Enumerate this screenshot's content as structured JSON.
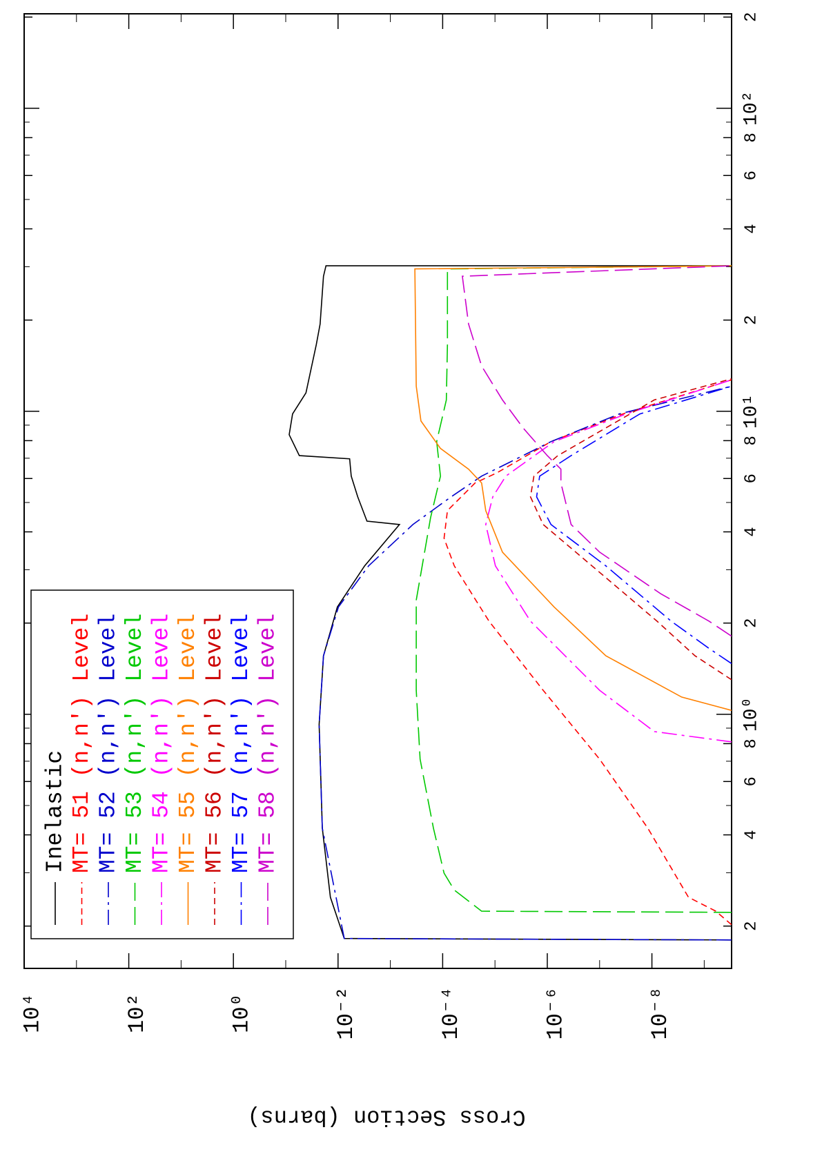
{
  "chart_data": {
    "type": "line",
    "ylabel": "Cross Section (barns)",
    "xscale": "log",
    "yscale": "log",
    "xlim": [
      0.145,
      205
    ],
    "ylim": [
      3e-10,
      10000
    ],
    "xticks": [
      {
        "value": 0.2,
        "label": "2"
      },
      {
        "value": 0.4,
        "label": "4"
      },
      {
        "value": 0.6,
        "label": "6"
      },
      {
        "value": 0.8,
        "label": "8"
      },
      {
        "value": 1,
        "label": "10⁰"
      },
      {
        "value": 2,
        "label": "2"
      },
      {
        "value": 4,
        "label": "4"
      },
      {
        "value": 6,
        "label": "6"
      },
      {
        "value": 8,
        "label": "8"
      },
      {
        "value": 10,
        "label": "10¹"
      },
      {
        "value": 20,
        "label": "2"
      },
      {
        "value": 40,
        "label": "4"
      },
      {
        "value": 60,
        "label": "6"
      },
      {
        "value": 80,
        "label": "8"
      },
      {
        "value": 100,
        "label": "10²"
      },
      {
        "value": 200,
        "label": "2"
      }
    ],
    "xminorticks": [
      0.3,
      0.5,
      0.7,
      0.9,
      3,
      5,
      7,
      9,
      30,
      50,
      70,
      90
    ],
    "yticks": [
      {
        "value": 10000,
        "label": "10⁴"
      },
      {
        "value": 100,
        "label": "10²"
      },
      {
        "value": 1,
        "label": "10⁰"
      },
      {
        "value": 0.01,
        "label": "10⁻²"
      },
      {
        "value": 0.0001,
        "label": "10⁻⁴"
      },
      {
        "value": 1e-06,
        "label": "10⁻⁶"
      },
      {
        "value": 1e-08,
        "label": "10⁻⁸"
      }
    ],
    "yminorticks": [
      1000,
      10,
      0.1,
      0.001,
      1e-05,
      1e-07,
      1e-09
    ],
    "legend": "upper-left",
    "series": [
      {
        "name": "Inelastic",
        "color": "#000000",
        "dash": "solid",
        "x": [
          0.18,
          0.182,
          0.249,
          0.421,
          0.925,
          1.56,
          2.26,
          3.09,
          4.23,
          4.34,
          5.22,
          6.11,
          6.97,
          7.14,
          8.37,
          9.8,
          11.5,
          16.6,
          19.4,
          27.9,
          30.2,
          30.2
        ],
        "values": [
          3e-10,
          0.0076,
          0.014,
          0.02,
          0.023,
          0.019,
          0.0103,
          0.0031,
          0.00067,
          0.0028,
          0.0042,
          0.0056,
          0.006,
          0.055,
          0.086,
          0.074,
          0.041,
          0.026,
          0.022,
          0.019,
          0.017,
          3e-10
        ]
      },
      {
        "name": "MT= 51 (n,n') Level",
        "color": "#ff0000",
        "dash": "dash",
        "x": [
          0.202,
          0.224,
          0.249,
          0.421,
          0.711,
          1.2,
          2.03,
          3.09,
          3.81,
          4.7,
          5.8,
          6.27,
          7.94,
          9.8,
          12.7
        ],
        "values": [
          3e-10,
          6e-10,
          2e-09,
          1.2e-08,
          1e-07,
          1.2e-06,
          1.3e-05,
          6e-05,
          9.4e-05,
          8.1e-05,
          2.4e-05,
          9.1e-06,
          8.5e-07,
          3.6e-08,
          3e-10
        ]
      },
      {
        "name": "MT= 52 (n,n') Level",
        "color": "#0000cc",
        "dash": "dashdot",
        "x": [
          0.18,
          0.182,
          0.421,
          0.925,
          1.56,
          2.26,
          3.09,
          4.23,
          5.22,
          6.11,
          6.78,
          7.94,
          9.8,
          12.1
        ],
        "values": [
          3e-10,
          0.0076,
          0.02,
          0.023,
          0.019,
          0.0098,
          0.0026,
          0.00037,
          6.9e-05,
          1.8e-05,
          5.3e-06,
          8.5e-07,
          4.2e-08,
          3e-10
        ]
      },
      {
        "name": "MT= 53 (n,n') Level",
        "color": "#00c800",
        "dash": "longdash",
        "x": [
          0.222,
          0.224,
          0.263,
          0.299,
          0.421,
          0.711,
          1.2,
          2.38,
          4.46,
          6.11,
          7.94,
          10.9,
          16.6,
          29.5,
          30.2
        ],
        "values": [
          3e-10,
          1.8e-05,
          6e-05,
          9.4e-05,
          0.00015,
          0.00027,
          0.00032,
          0.00032,
          0.00017,
          0.00011,
          0.00013,
          8.5e-05,
          8.1e-05,
          8.1e-05,
          3e-10
        ]
      },
      {
        "name": "MT= 54 (n,n') Level",
        "color": "#ff00ff",
        "dash": "dashdot",
        "x": [
          0.811,
          0.877,
          1.2,
          2.03,
          3.09,
          4.23,
          5.22,
          6.11,
          7.94,
          9.8,
          12.7
        ],
        "values": [
          3e-10,
          9e-09,
          1e-07,
          2.1e-06,
          9.8e-06,
          1.5e-05,
          1.1e-05,
          6.2e-06,
          7.4e-07,
          3.1e-08,
          3e-10
        ]
      },
      {
        "name": "MT= 55 (n,n') Level",
        "color": "#ff8000",
        "dash": "solid",
        "x": [
          1.03,
          1.14,
          1.56,
          2.26,
          3.43,
          4.7,
          5.8,
          6.44,
          7.54,
          9.29,
          12.1,
          29.5,
          30.2
        ],
        "values": [
          3e-10,
          2.7e-09,
          7.6e-08,
          7.4e-07,
          7.2e-06,
          1.5e-05,
          1.8e-05,
          3.2e-05,
          0.00011,
          0.00026,
          0.00032,
          0.00034,
          3e-10
        ]
      },
      {
        "name": "MT= 56 (n,n') Level",
        "color": "#cc0000",
        "dash": "dash",
        "x": [
          1.3,
          1.56,
          2.03,
          3.09,
          4.23,
          5.22,
          6.11,
          7.14,
          8.81,
          10.9,
          12.8
        ],
        "values": [
          3e-10,
          1.5e-09,
          8e-09,
          1.4e-07,
          1.2e-06,
          2.1e-06,
          1.8e-06,
          6.3e-07,
          7.6e-08,
          9e-09,
          3e-10
        ]
      },
      {
        "name": "MT= 57 (n,n') Level",
        "color": "#0000ff",
        "dash": "dashdot",
        "x": [
          1.47,
          1.65,
          2.03,
          3.09,
          4.23,
          5.22,
          6.11,
          7.14,
          9.8,
          12.1
        ],
        "values": [
          3e-10,
          8.1e-10,
          4.3e-09,
          7.6e-08,
          8.5e-07,
          1.6e-06,
          1.4e-06,
          3.5e-07,
          1.7e-08,
          3e-10
        ]
      },
      {
        "name": "MT= 58 (n,n') Level",
        "color": "#cc00cc",
        "dash": "longdash",
        "x": [
          1.81,
          2.03,
          2.5,
          3.43,
          4.23,
          5.8,
          6.44,
          7.14,
          8.81,
          10.9,
          14.1,
          19.4,
          27.9,
          30.2
        ],
        "values": [
          3e-10,
          8.1e-10,
          6.8e-09,
          1e-07,
          3.5e-07,
          5.5e-07,
          5.5e-07,
          1e-06,
          2.9e-06,
          7.2e-06,
          1.8e-05,
          3.2e-05,
          4.2e-05,
          3e-10
        ]
      }
    ]
  }
}
